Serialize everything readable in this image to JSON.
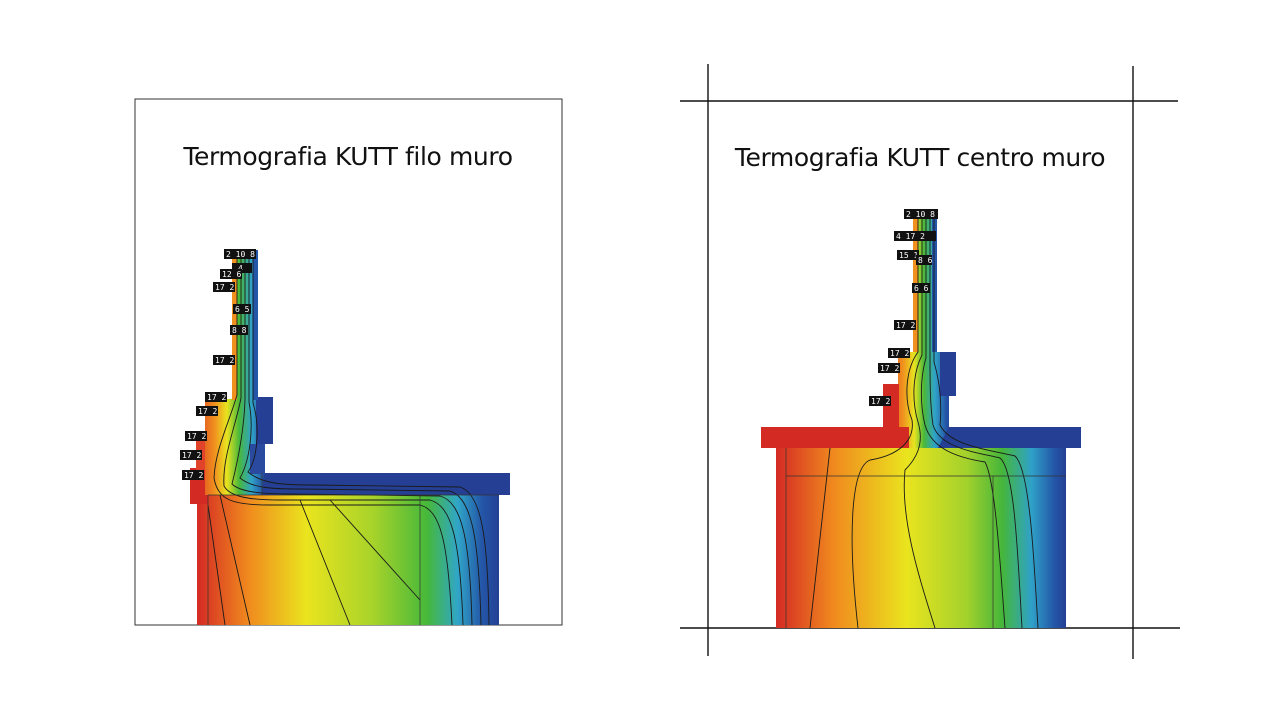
{
  "panels": [
    {
      "id": "left",
      "title": "Termografia KUTT filo muro",
      "labels": [
        "2 10 8",
        "4",
        "12 6",
        "17 2",
        "6 5",
        "8 8",
        "17 2",
        "17 2",
        "17 2",
        "17 2",
        "17 2",
        "17 2"
      ]
    },
    {
      "id": "right",
      "title": "Termografia KUTT centro muro",
      "labels": [
        "2 10 8",
        "4 17 2",
        "15 1",
        "6 6",
        "8 6",
        "17 2",
        "17 2",
        "17 2",
        "17 2"
      ]
    }
  ],
  "colors": {
    "hot": "#d42a24",
    "warm": "#f28a1e",
    "mid": "#e8e620",
    "cool": "#4fbf3a",
    "cold": "#2a9cd6",
    "coldest": "#243f93"
  }
}
